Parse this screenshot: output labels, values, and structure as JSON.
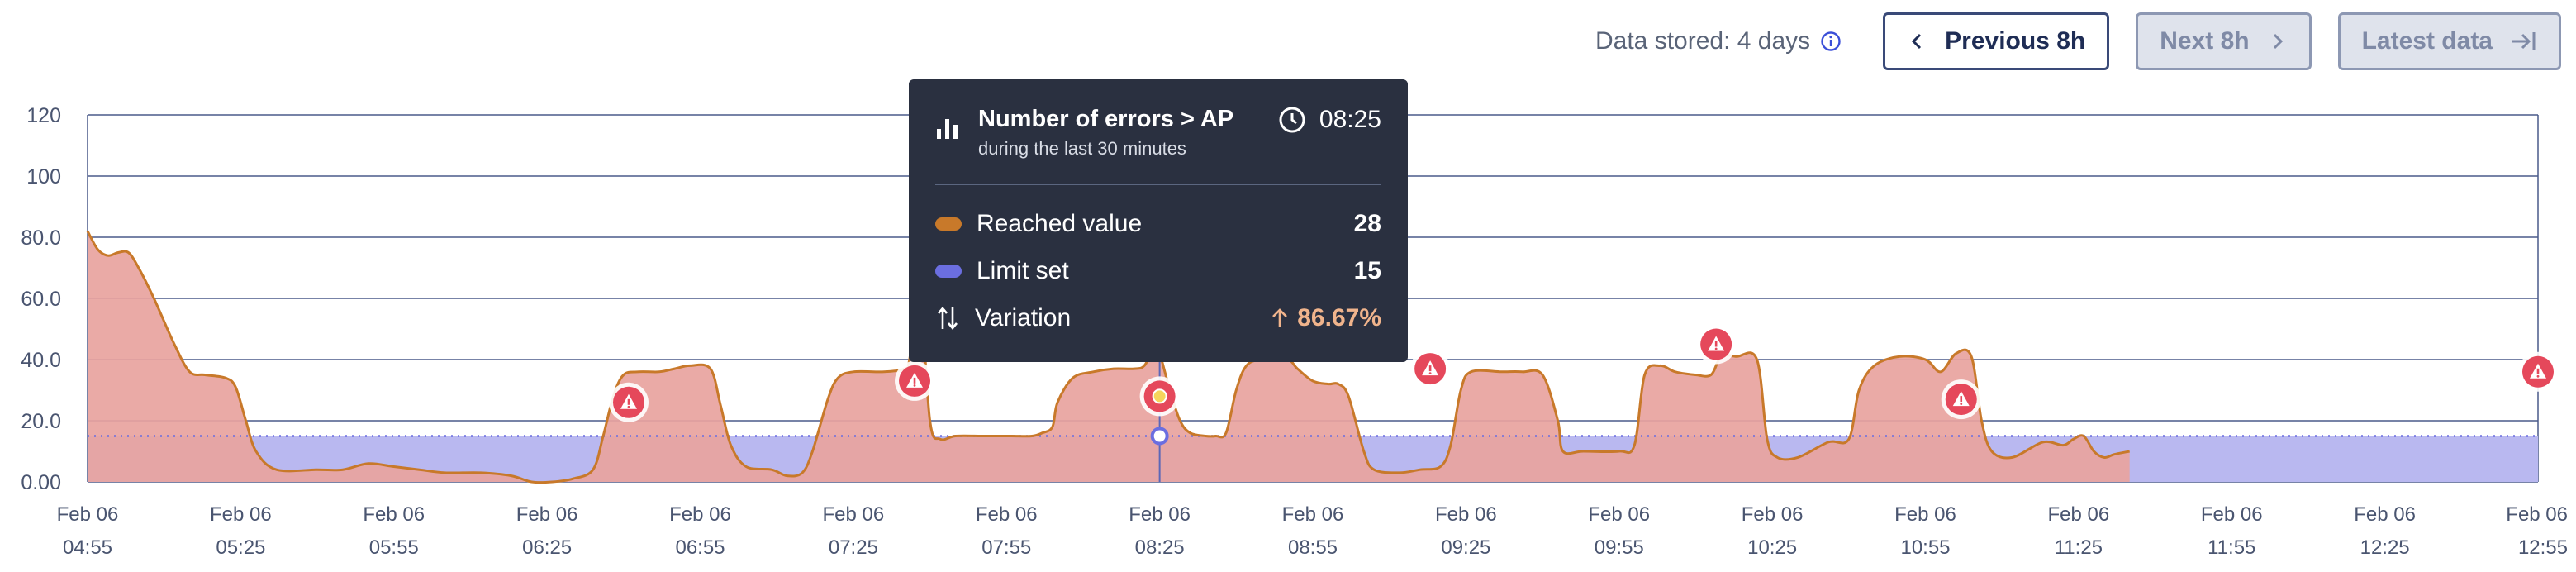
{
  "toolbar": {
    "stored_label": "Data stored: 4 days",
    "previous_label": "Previous 8h",
    "next_label": "Next 8h",
    "latest_label": "Latest data"
  },
  "tooltip": {
    "title": "Number of errors > AP",
    "subtitle": "during the last 30 minutes",
    "time": "08:25",
    "rows": [
      {
        "label": "Reached value",
        "value": "28"
      },
      {
        "label": "Limit set",
        "value": "15"
      },
      {
        "label": "Variation",
        "value": "86.67%"
      }
    ]
  },
  "colors": {
    "reached_line": "#c8792a",
    "reached_fill": "#e8a39e",
    "limit_fill": "#b9b8f0",
    "limit_marker": "#6b6ee0",
    "alert": "#e5485b",
    "grid": "#4a5a8a"
  },
  "chart_data": {
    "type": "area",
    "ylim": [
      0,
      120
    ],
    "yticks": [
      "0.00",
      "20.0",
      "40.0",
      "60.0",
      "80.0",
      "100",
      "120"
    ],
    "ytick_values": [
      0,
      20,
      40,
      60,
      80,
      100,
      120
    ],
    "xlim_minutes": [
      295,
      775
    ],
    "xticks": [
      {
        "date": "Feb 06",
        "time": "04:55",
        "minute": 295
      },
      {
        "date": "Feb 06",
        "time": "05:25",
        "minute": 325
      },
      {
        "date": "Feb 06",
        "time": "05:55",
        "minute": 355
      },
      {
        "date": "Feb 06",
        "time": "06:25",
        "minute": 385
      },
      {
        "date": "Feb 06",
        "time": "06:55",
        "minute": 415
      },
      {
        "date": "Feb 06",
        "time": "07:25",
        "minute": 445
      },
      {
        "date": "Feb 06",
        "time": "07:55",
        "minute": 475
      },
      {
        "date": "Feb 06",
        "time": "08:25",
        "minute": 505
      },
      {
        "date": "Feb 06",
        "time": "08:55",
        "minute": 535
      },
      {
        "date": "Feb 06",
        "time": "09:25",
        "minute": 565
      },
      {
        "date": "Feb 06",
        "time": "09:55",
        "minute": 595
      },
      {
        "date": "Feb 06",
        "time": "10:25",
        "minute": 625
      },
      {
        "date": "Feb 06",
        "time": "10:55",
        "minute": 655
      },
      {
        "date": "Feb 06",
        "time": "11:25",
        "minute": 685
      },
      {
        "date": "Feb 06",
        "time": "11:55",
        "minute": 715
      },
      {
        "date": "Feb 06",
        "time": "12:25",
        "minute": 745
      },
      {
        "date": "Feb 06",
        "time": "12:55",
        "minute": 775
      }
    ],
    "limit_value": 15,
    "reached": [
      [
        295,
        82
      ],
      [
        297,
        76
      ],
      [
        299,
        74
      ],
      [
        301,
        75
      ],
      [
        303,
        75
      ],
      [
        305,
        70
      ],
      [
        308,
        60
      ],
      [
        312,
        45
      ],
      [
        315,
        36
      ],
      [
        318,
        35
      ],
      [
        322,
        34
      ],
      [
        324,
        31
      ],
      [
        326,
        20
      ],
      [
        328,
        10
      ],
      [
        332,
        4
      ],
      [
        340,
        4
      ],
      [
        345,
        4
      ],
      [
        350,
        6
      ],
      [
        355,
        5
      ],
      [
        360,
        4
      ],
      [
        365,
        3
      ],
      [
        372,
        3
      ],
      [
        378,
        2
      ],
      [
        382,
        0
      ],
      [
        386,
        0
      ],
      [
        390,
        1
      ],
      [
        394,
        4
      ],
      [
        396,
        15
      ],
      [
        398,
        28
      ],
      [
        400,
        35
      ],
      [
        403,
        36
      ],
      [
        407,
        36
      ],
      [
        410,
        37
      ],
      [
        413,
        38
      ],
      [
        417,
        37
      ],
      [
        419,
        25
      ],
      [
        421,
        12
      ],
      [
        424,
        5
      ],
      [
        429,
        4
      ],
      [
        432,
        2
      ],
      [
        435,
        3
      ],
      [
        437,
        10
      ],
      [
        440,
        27
      ],
      [
        442,
        34
      ],
      [
        445,
        36
      ],
      [
        451,
        36
      ],
      [
        455,
        37
      ],
      [
        456,
        40
      ],
      [
        458,
        62
      ],
      [
        460,
        20
      ],
      [
        462,
        14
      ],
      [
        465,
        15
      ],
      [
        470,
        15
      ],
      [
        472,
        15
      ],
      [
        476,
        15
      ],
      [
        480,
        15
      ],
      [
        482,
        16
      ],
      [
        484,
        18
      ],
      [
        485,
        26
      ],
      [
        488,
        34
      ],
      [
        492,
        36
      ],
      [
        496,
        37
      ],
      [
        500,
        37
      ],
      [
        502,
        38
      ],
      [
        504,
        44
      ],
      [
        505,
        42
      ],
      [
        507,
        30
      ],
      [
        509,
        20
      ],
      [
        511,
        16
      ],
      [
        514,
        15
      ],
      [
        516,
        15
      ],
      [
        518,
        16
      ],
      [
        520,
        30
      ],
      [
        522,
        38
      ],
      [
        525,
        40
      ],
      [
        530,
        40
      ],
      [
        532,
        37
      ],
      [
        535,
        33
      ],
      [
        538,
        32
      ],
      [
        540,
        32
      ],
      [
        542,
        28
      ],
      [
        545,
        10
      ],
      [
        547,
        4
      ],
      [
        552,
        3
      ],
      [
        556,
        4
      ],
      [
        560,
        5
      ],
      [
        562,
        12
      ],
      [
        564,
        30
      ],
      [
        566,
        36
      ],
      [
        572,
        36
      ],
      [
        576,
        36
      ],
      [
        580,
        35
      ],
      [
        583,
        20
      ],
      [
        584,
        10
      ],
      [
        588,
        10
      ],
      [
        595,
        10
      ],
      [
        598,
        12
      ],
      [
        600,
        35
      ],
      [
        603,
        38
      ],
      [
        606,
        36
      ],
      [
        610,
        35
      ],
      [
        613,
        35
      ],
      [
        615,
        41
      ],
      [
        618,
        41
      ],
      [
        622,
        40
      ],
      [
        624,
        14
      ],
      [
        626,
        8
      ],
      [
        630,
        8
      ],
      [
        636,
        13
      ],
      [
        640,
        14
      ],
      [
        642,
        30
      ],
      [
        645,
        38
      ],
      [
        650,
        41
      ],
      [
        655,
        40
      ],
      [
        658,
        36
      ],
      [
        661,
        42
      ],
      [
        664,
        41
      ],
      [
        666,
        20
      ],
      [
        668,
        10
      ],
      [
        672,
        8
      ],
      [
        678,
        13
      ],
      [
        682,
        12
      ],
      [
        684,
        14
      ],
      [
        686,
        15
      ],
      [
        688,
        10
      ],
      [
        690,
        8
      ],
      [
        692,
        9
      ],
      [
        695,
        10
      ]
    ],
    "alerts_minutes": [
      401,
      457,
      505,
      558,
      614,
      662,
      775
    ],
    "alert_values": [
      26,
      33,
      28,
      37,
      45,
      27,
      36
    ],
    "hover_minute": 505,
    "hover_reached": 28,
    "hover_limit": 15
  }
}
